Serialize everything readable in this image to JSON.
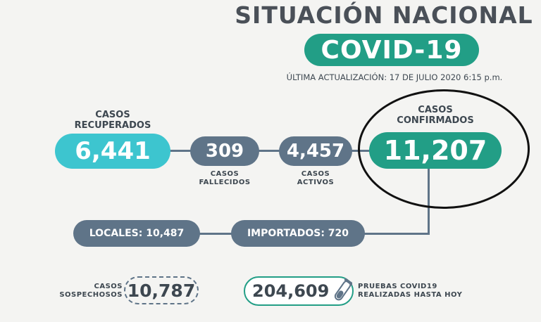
{
  "header": {
    "title": "SITUACIÓN NACIONAL",
    "badge": "COVID-19",
    "update": "ÚLTIMA ACTUALIZACIÓN: 17 DE JULIO 2020 6:15 p.m."
  },
  "stats": {
    "recuperados": {
      "label_1": "CASOS",
      "label_2": "RECUPERADOS",
      "value": "6,441"
    },
    "fallecidos": {
      "value": "309",
      "label_1": "CASOS",
      "label_2": "FALLECIDOS"
    },
    "activos": {
      "value": "4,457",
      "label_1": "CASOS",
      "label_2": "ACTIVOS"
    },
    "confirmados": {
      "label_1": "CASOS",
      "label_2": "CONFIRMADOS",
      "value": "11,207"
    }
  },
  "breakdown": {
    "locales": "LOCALES: 10,487",
    "importados": "IMPORTADOS: 720"
  },
  "footer": {
    "sospechosos": {
      "label_1": "CASOS",
      "label_2": "SOSPECHOSOS",
      "value": "10,787"
    },
    "pruebas": {
      "value": "204,609",
      "label_1": "PRUEBAS COVID19",
      "label_2": "REALIZADAS HASTA HOY"
    }
  },
  "colors": {
    "teal": "#229e86",
    "cyan": "#3dc5cf",
    "slate": "#5f7488",
    "background": "#f4f4f2"
  },
  "icons": [
    "test-tube-icon"
  ]
}
